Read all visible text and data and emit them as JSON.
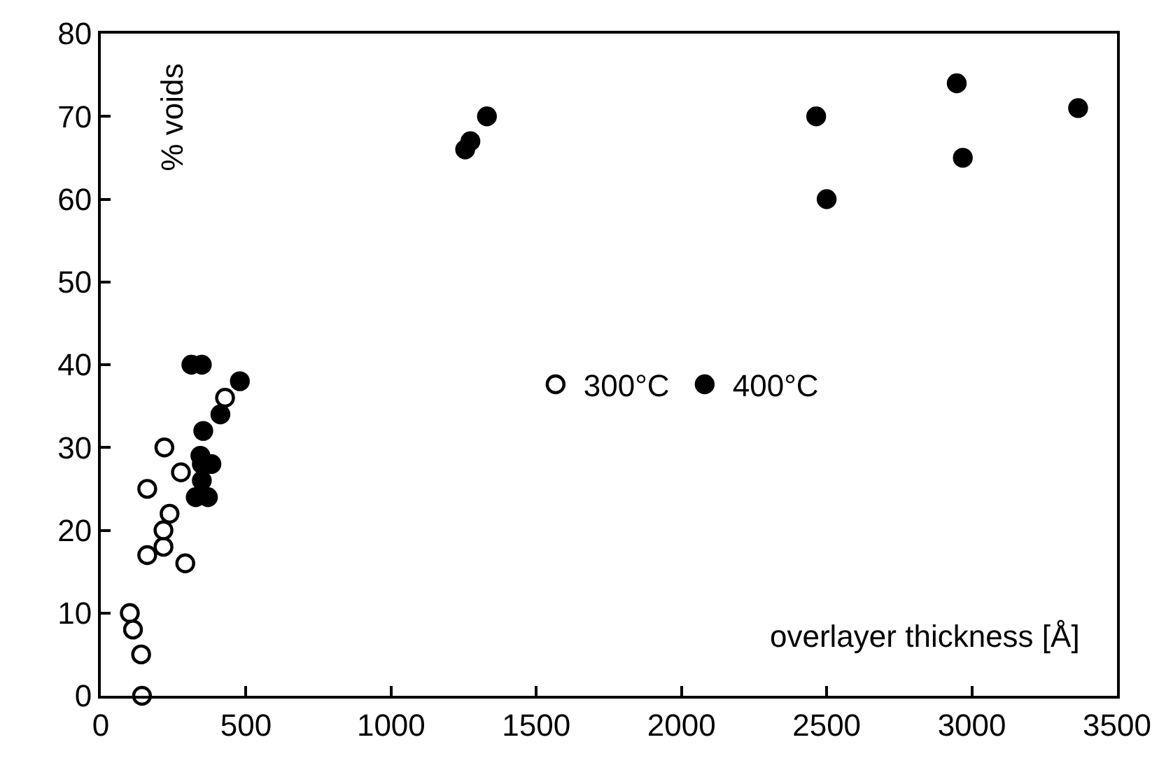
{
  "chart_data": {
    "type": "scatter",
    "xlabel": "overlayer thickness [Å]",
    "ylabel": "% voids",
    "xlim": [
      0,
      3500
    ],
    "xticks": [
      0,
      500,
      1000,
      1500,
      2000,
      2500,
      3000,
      3500
    ],
    "ylim": [
      0,
      80
    ],
    "yticks": [
      0,
      10,
      20,
      30,
      40,
      50,
      60,
      70,
      80
    ],
    "legend": "right",
    "marker": "circle",
    "series": [
      {
        "name": "300°C",
        "color": "#ffffff",
        "x": [
          100,
          111,
          139,
          142,
          160,
          160,
          216,
          216,
          237,
          219,
          276,
          291,
          428
        ],
        "values": [
          10,
          8,
          5,
          0,
          17,
          25,
          18,
          20,
          22,
          30,
          27,
          16,
          36
        ]
      },
      {
        "name": "400°C",
        "color": "#000000",
        "x": [
          312,
          348,
          479,
          412,
          353,
          343,
          348,
          381,
          348,
          327,
          369,
          1255,
          1273,
          1330,
          2464,
          2500,
          2948,
          2969,
          3366
        ],
        "values": [
          40,
          40,
          38,
          34,
          32,
          29,
          28,
          28,
          26,
          24,
          24,
          66,
          67,
          70,
          70,
          60,
          74,
          65,
          71
        ]
      }
    ]
  }
}
